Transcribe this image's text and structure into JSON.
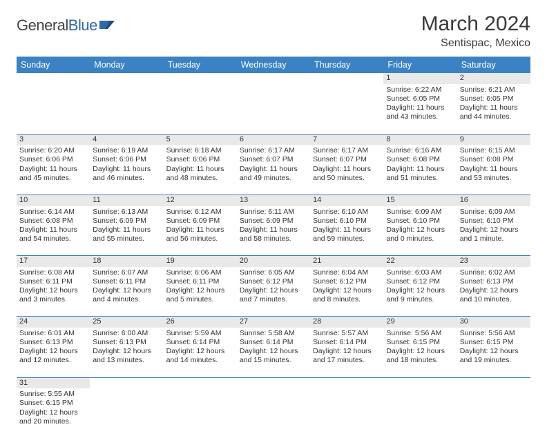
{
  "brand": {
    "word1": "General",
    "word2": "Blue"
  },
  "title": "March 2024",
  "location": "Sentispac, Mexico",
  "colors": {
    "header_bg": "#3a82c4",
    "header_fg": "#ffffff",
    "daynum_bg": "#e9e9e9",
    "rule": "#3a82c4",
    "logo_blue": "#2f6aa8",
    "text": "#333333"
  },
  "day_headers": [
    "Sunday",
    "Monday",
    "Tuesday",
    "Wednesday",
    "Thursday",
    "Friday",
    "Saturday"
  ],
  "weeks": [
    [
      null,
      null,
      null,
      null,
      null,
      {
        "n": "1",
        "lines": [
          "Sunrise: 6:22 AM",
          "Sunset: 6:05 PM",
          "Daylight: 11 hours and 43 minutes."
        ]
      },
      {
        "n": "2",
        "lines": [
          "Sunrise: 6:21 AM",
          "Sunset: 6:05 PM",
          "Daylight: 11 hours and 44 minutes."
        ]
      }
    ],
    [
      {
        "n": "3",
        "lines": [
          "Sunrise: 6:20 AM",
          "Sunset: 6:06 PM",
          "Daylight: 11 hours and 45 minutes."
        ]
      },
      {
        "n": "4",
        "lines": [
          "Sunrise: 6:19 AM",
          "Sunset: 6:06 PM",
          "Daylight: 11 hours and 46 minutes."
        ]
      },
      {
        "n": "5",
        "lines": [
          "Sunrise: 6:18 AM",
          "Sunset: 6:06 PM",
          "Daylight: 11 hours and 48 minutes."
        ]
      },
      {
        "n": "6",
        "lines": [
          "Sunrise: 6:17 AM",
          "Sunset: 6:07 PM",
          "Daylight: 11 hours and 49 minutes."
        ]
      },
      {
        "n": "7",
        "lines": [
          "Sunrise: 6:17 AM",
          "Sunset: 6:07 PM",
          "Daylight: 11 hours and 50 minutes."
        ]
      },
      {
        "n": "8",
        "lines": [
          "Sunrise: 6:16 AM",
          "Sunset: 6:08 PM",
          "Daylight: 11 hours and 51 minutes."
        ]
      },
      {
        "n": "9",
        "lines": [
          "Sunrise: 6:15 AM",
          "Sunset: 6:08 PM",
          "Daylight: 11 hours and 53 minutes."
        ]
      }
    ],
    [
      {
        "n": "10",
        "lines": [
          "Sunrise: 6:14 AM",
          "Sunset: 6:08 PM",
          "Daylight: 11 hours and 54 minutes."
        ]
      },
      {
        "n": "11",
        "lines": [
          "Sunrise: 6:13 AM",
          "Sunset: 6:09 PM",
          "Daylight: 11 hours and 55 minutes."
        ]
      },
      {
        "n": "12",
        "lines": [
          "Sunrise: 6:12 AM",
          "Sunset: 6:09 PM",
          "Daylight: 11 hours and 56 minutes."
        ]
      },
      {
        "n": "13",
        "lines": [
          "Sunrise: 6:11 AM",
          "Sunset: 6:09 PM",
          "Daylight: 11 hours and 58 minutes."
        ]
      },
      {
        "n": "14",
        "lines": [
          "Sunrise: 6:10 AM",
          "Sunset: 6:10 PM",
          "Daylight: 11 hours and 59 minutes."
        ]
      },
      {
        "n": "15",
        "lines": [
          "Sunrise: 6:09 AM",
          "Sunset: 6:10 PM",
          "Daylight: 12 hours and 0 minutes."
        ]
      },
      {
        "n": "16",
        "lines": [
          "Sunrise: 6:09 AM",
          "Sunset: 6:10 PM",
          "Daylight: 12 hours and 1 minute."
        ]
      }
    ],
    [
      {
        "n": "17",
        "lines": [
          "Sunrise: 6:08 AM",
          "Sunset: 6:11 PM",
          "Daylight: 12 hours and 3 minutes."
        ]
      },
      {
        "n": "18",
        "lines": [
          "Sunrise: 6:07 AM",
          "Sunset: 6:11 PM",
          "Daylight: 12 hours and 4 minutes."
        ]
      },
      {
        "n": "19",
        "lines": [
          "Sunrise: 6:06 AM",
          "Sunset: 6:11 PM",
          "Daylight: 12 hours and 5 minutes."
        ]
      },
      {
        "n": "20",
        "lines": [
          "Sunrise: 6:05 AM",
          "Sunset: 6:12 PM",
          "Daylight: 12 hours and 7 minutes."
        ]
      },
      {
        "n": "21",
        "lines": [
          "Sunrise: 6:04 AM",
          "Sunset: 6:12 PM",
          "Daylight: 12 hours and 8 minutes."
        ]
      },
      {
        "n": "22",
        "lines": [
          "Sunrise: 6:03 AM",
          "Sunset: 6:12 PM",
          "Daylight: 12 hours and 9 minutes."
        ]
      },
      {
        "n": "23",
        "lines": [
          "Sunrise: 6:02 AM",
          "Sunset: 6:13 PM",
          "Daylight: 12 hours and 10 minutes."
        ]
      }
    ],
    [
      {
        "n": "24",
        "lines": [
          "Sunrise: 6:01 AM",
          "Sunset: 6:13 PM",
          "Daylight: 12 hours and 12 minutes."
        ]
      },
      {
        "n": "25",
        "lines": [
          "Sunrise: 6:00 AM",
          "Sunset: 6:13 PM",
          "Daylight: 12 hours and 13 minutes."
        ]
      },
      {
        "n": "26",
        "lines": [
          "Sunrise: 5:59 AM",
          "Sunset: 6:14 PM",
          "Daylight: 12 hours and 14 minutes."
        ]
      },
      {
        "n": "27",
        "lines": [
          "Sunrise: 5:58 AM",
          "Sunset: 6:14 PM",
          "Daylight: 12 hours and 15 minutes."
        ]
      },
      {
        "n": "28",
        "lines": [
          "Sunrise: 5:57 AM",
          "Sunset: 6:14 PM",
          "Daylight: 12 hours and 17 minutes."
        ]
      },
      {
        "n": "29",
        "lines": [
          "Sunrise: 5:56 AM",
          "Sunset: 6:15 PM",
          "Daylight: 12 hours and 18 minutes."
        ]
      },
      {
        "n": "30",
        "lines": [
          "Sunrise: 5:56 AM",
          "Sunset: 6:15 PM",
          "Daylight: 12 hours and 19 minutes."
        ]
      }
    ],
    [
      {
        "n": "31",
        "lines": [
          "Sunrise: 5:55 AM",
          "Sunset: 6:15 PM",
          "Daylight: 12 hours and 20 minutes."
        ]
      },
      null,
      null,
      null,
      null,
      null,
      null
    ]
  ]
}
